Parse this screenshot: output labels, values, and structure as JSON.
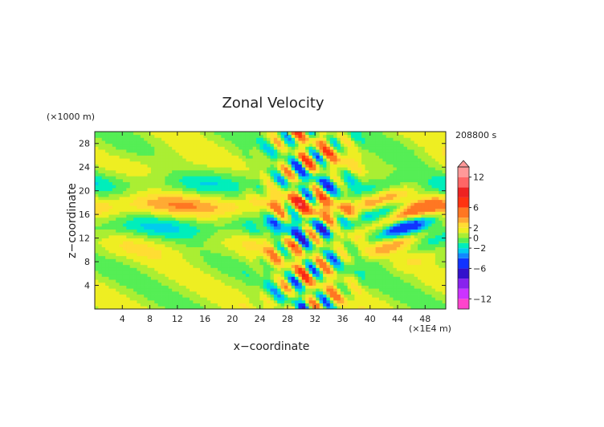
{
  "chart_data": {
    "type": "heatmap",
    "title": "Zonal Velocity",
    "xlabel": "x−coordinate",
    "ylabel": "z−coordinate",
    "x_unit": "(×1E4 m)",
    "y_unit": "(×1000 m)",
    "time_label": "208800 s",
    "xlim": [
      0,
      51
    ],
    "ylim": [
      0,
      30
    ],
    "xticks": [
      "4",
      "8",
      "12",
      "16",
      "20",
      "24",
      "28",
      "32",
      "36",
      "40",
      "44",
      "48"
    ],
    "yticks": [
      "4",
      "8",
      "12",
      "16",
      "20",
      "24",
      "28"
    ],
    "colorbar": {
      "levels": [
        -14,
        -12,
        -10,
        -8,
        -6,
        -4,
        -3,
        -2,
        -1,
        0,
        1,
        2,
        3,
        4,
        6,
        8,
        10,
        12,
        14
      ],
      "colors": [
        "#ff44cc",
        "#cc33ff",
        "#8822ee",
        "#3311cc",
        "#1133ff",
        "#1188ff",
        "#00ccee",
        "#00eebb",
        "#55ee55",
        "#aaee33",
        "#eeee22",
        "#ffdd33",
        "#ffaa33",
        "#ff7722",
        "#ff3311",
        "#ee2222",
        "#ff6666",
        "#ff9999"
      ],
      "tick_labels": [
        "12",
        "6",
        "2",
        "0",
        "−2",
        "−6",
        "−12"
      ],
      "tick_values": [
        12,
        6,
        2,
        0,
        -2,
        -6,
        -12
      ]
    }
  }
}
